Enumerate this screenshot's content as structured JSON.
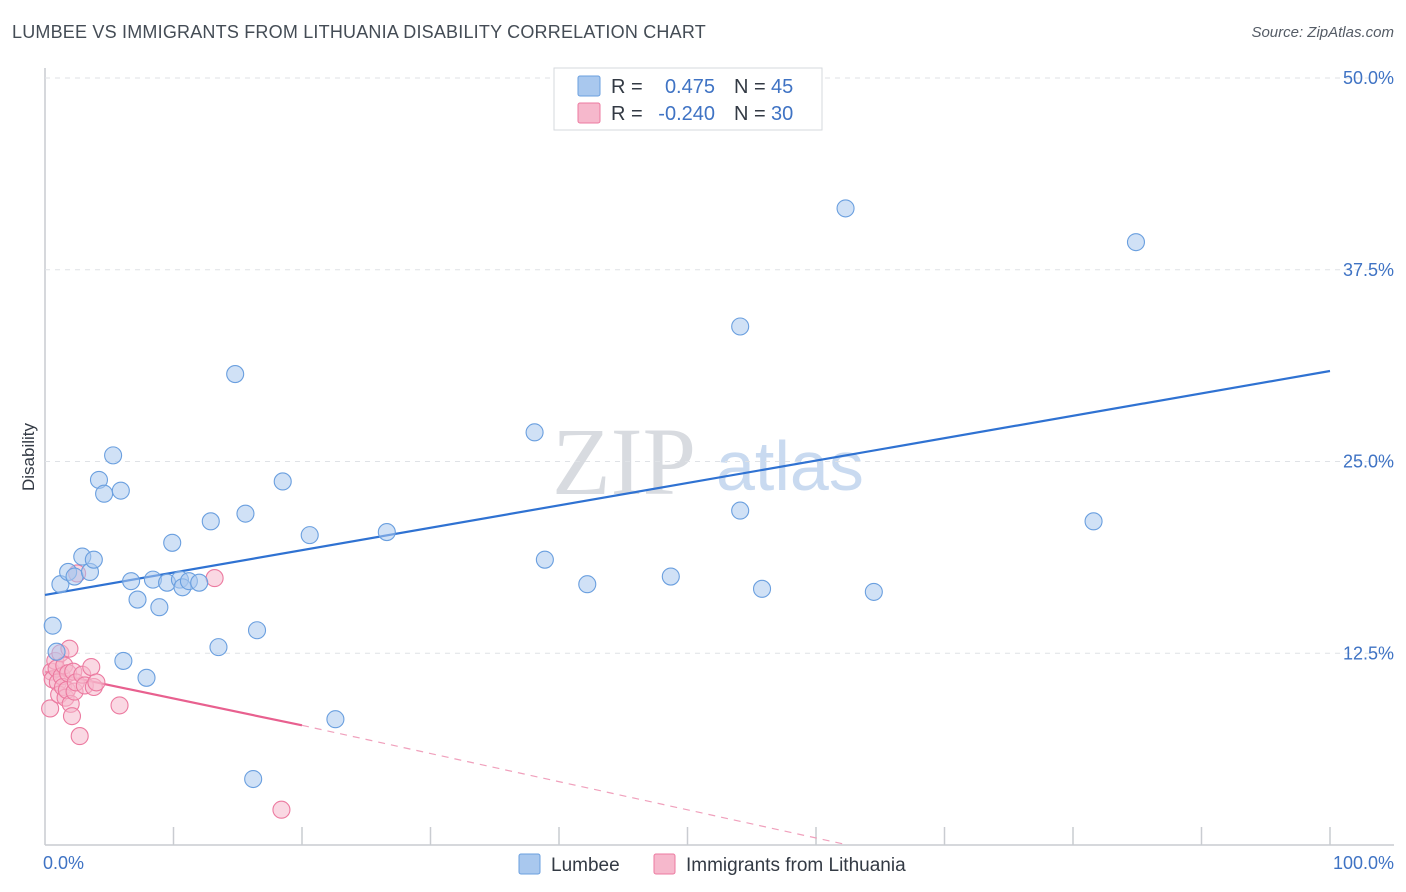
{
  "header": {
    "title": "LUMBEE VS IMMIGRANTS FROM LITHUANIA DISABILITY CORRELATION CHART",
    "source": "Source: ZipAtlas.com"
  },
  "watermark": {
    "part1": "ZIP",
    "part2": "atlas"
  },
  "legend": {
    "rows": [
      {
        "r_label": "R =",
        "r_value": "0.475",
        "n_label": "N =",
        "n_value": "45",
        "color": "#a9c8ee"
      },
      {
        "r_label": "R =",
        "r_value": "-0.240",
        "n_label": "N =",
        "n_value": "30",
        "color": "#f6b8cc"
      }
    ]
  },
  "bottom_legend": {
    "items": [
      {
        "label": "Lumbee",
        "color": "#a9c8ee"
      },
      {
        "label": "Immigrants from Lithuania",
        "color": "#f6b8cc"
      }
    ]
  },
  "chart_data": {
    "type": "scatter",
    "title": "LUMBEE VS IMMIGRANTS FROM LITHUANIA DISABILITY CORRELATION CHART",
    "xlabel": "",
    "ylabel": "Disability",
    "xlim": [
      0,
      100
    ],
    "ylim": [
      0,
      50
    ],
    "x_tick_labels": [
      "0.0%",
      "100.0%"
    ],
    "y_ticks": [
      12.5,
      25.0,
      37.5,
      50.0
    ],
    "y_tick_labels": [
      "12.5%",
      "25.0%",
      "37.5%",
      "50.0%"
    ],
    "grid": true,
    "legend_position": "top-center",
    "series": [
      {
        "name": "Lumbee",
        "color": "#6a9fdf",
        "fill": "#a9c8ee",
        "points": [
          [
            0.6,
            14.3
          ],
          [
            0.9,
            12.6
          ],
          [
            1.2,
            17.0
          ],
          [
            1.8,
            17.8
          ],
          [
            2.3,
            17.5
          ],
          [
            2.9,
            18.8
          ],
          [
            3.5,
            17.8
          ],
          [
            3.8,
            18.6
          ],
          [
            4.2,
            23.8
          ],
          [
            4.6,
            22.9
          ],
          [
            5.3,
            25.4
          ],
          [
            5.9,
            23.1
          ],
          [
            6.1,
            12.0
          ],
          [
            6.7,
            17.2
          ],
          [
            7.2,
            16.0
          ],
          [
            7.9,
            10.9
          ],
          [
            8.4,
            17.3
          ],
          [
            8.9,
            15.5
          ],
          [
            9.5,
            17.1
          ],
          [
            9.9,
            19.7
          ],
          [
            10.5,
            17.3
          ],
          [
            10.7,
            16.8
          ],
          [
            11.2,
            17.2
          ],
          [
            12.0,
            17.1
          ],
          [
            12.9,
            21.1
          ],
          [
            13.5,
            12.9
          ],
          [
            14.8,
            30.7
          ],
          [
            15.6,
            21.6
          ],
          [
            16.5,
            14.0
          ],
          [
            16.2,
            4.3
          ],
          [
            18.5,
            23.7
          ],
          [
            20.6,
            20.2
          ],
          [
            22.6,
            8.2
          ],
          [
            26.6,
            20.4
          ],
          [
            38.1,
            26.9
          ],
          [
            38.9,
            18.6
          ],
          [
            42.2,
            17.0
          ],
          [
            48.7,
            17.5
          ],
          [
            54.1,
            21.8
          ],
          [
            54.1,
            33.8
          ],
          [
            55.8,
            16.7
          ],
          [
            62.3,
            41.5
          ],
          [
            64.5,
            16.5
          ],
          [
            81.6,
            21.1
          ],
          [
            84.9,
            39.3
          ]
        ],
        "trend": {
          "x": [
            0,
            100
          ],
          "y": [
            16.3,
            30.9
          ],
          "style": "solid"
        }
      },
      {
        "name": "Immigrants from Lithuania",
        "color": "#ec7aa0",
        "fill": "#f6b8cc",
        "points": [
          [
            0.4,
            8.9
          ],
          [
            0.5,
            11.3
          ],
          [
            0.6,
            10.8
          ],
          [
            0.8,
            12.0
          ],
          [
            0.9,
            11.5
          ],
          [
            1.0,
            10.6
          ],
          [
            1.1,
            9.8
          ],
          [
            1.2,
            12.5
          ],
          [
            1.3,
            11.0
          ],
          [
            1.4,
            10.3
          ],
          [
            1.5,
            11.7
          ],
          [
            1.6,
            9.6
          ],
          [
            1.7,
            10.1
          ],
          [
            1.8,
            11.2
          ],
          [
            1.9,
            12.8
          ],
          [
            2.0,
            9.2
          ],
          [
            2.1,
            8.4
          ],
          [
            2.2,
            11.3
          ],
          [
            2.3,
            10.0
          ],
          [
            2.4,
            10.6
          ],
          [
            2.5,
            17.7
          ],
          [
            2.7,
            7.1
          ],
          [
            2.9,
            11.1
          ],
          [
            3.1,
            10.4
          ],
          [
            3.6,
            11.6
          ],
          [
            3.8,
            10.3
          ],
          [
            4.0,
            10.6
          ],
          [
            5.8,
            9.1
          ],
          [
            13.2,
            17.4
          ],
          [
            18.4,
            2.3
          ]
        ],
        "trend": {
          "x": [
            0,
            20
          ],
          "y": [
            11.3,
            7.8
          ],
          "style": "solid"
        },
        "trend_extension": {
          "x": [
            20,
            62.5
          ],
          "y": [
            7.8,
            0
          ],
          "style": "dashed"
        }
      }
    ]
  }
}
